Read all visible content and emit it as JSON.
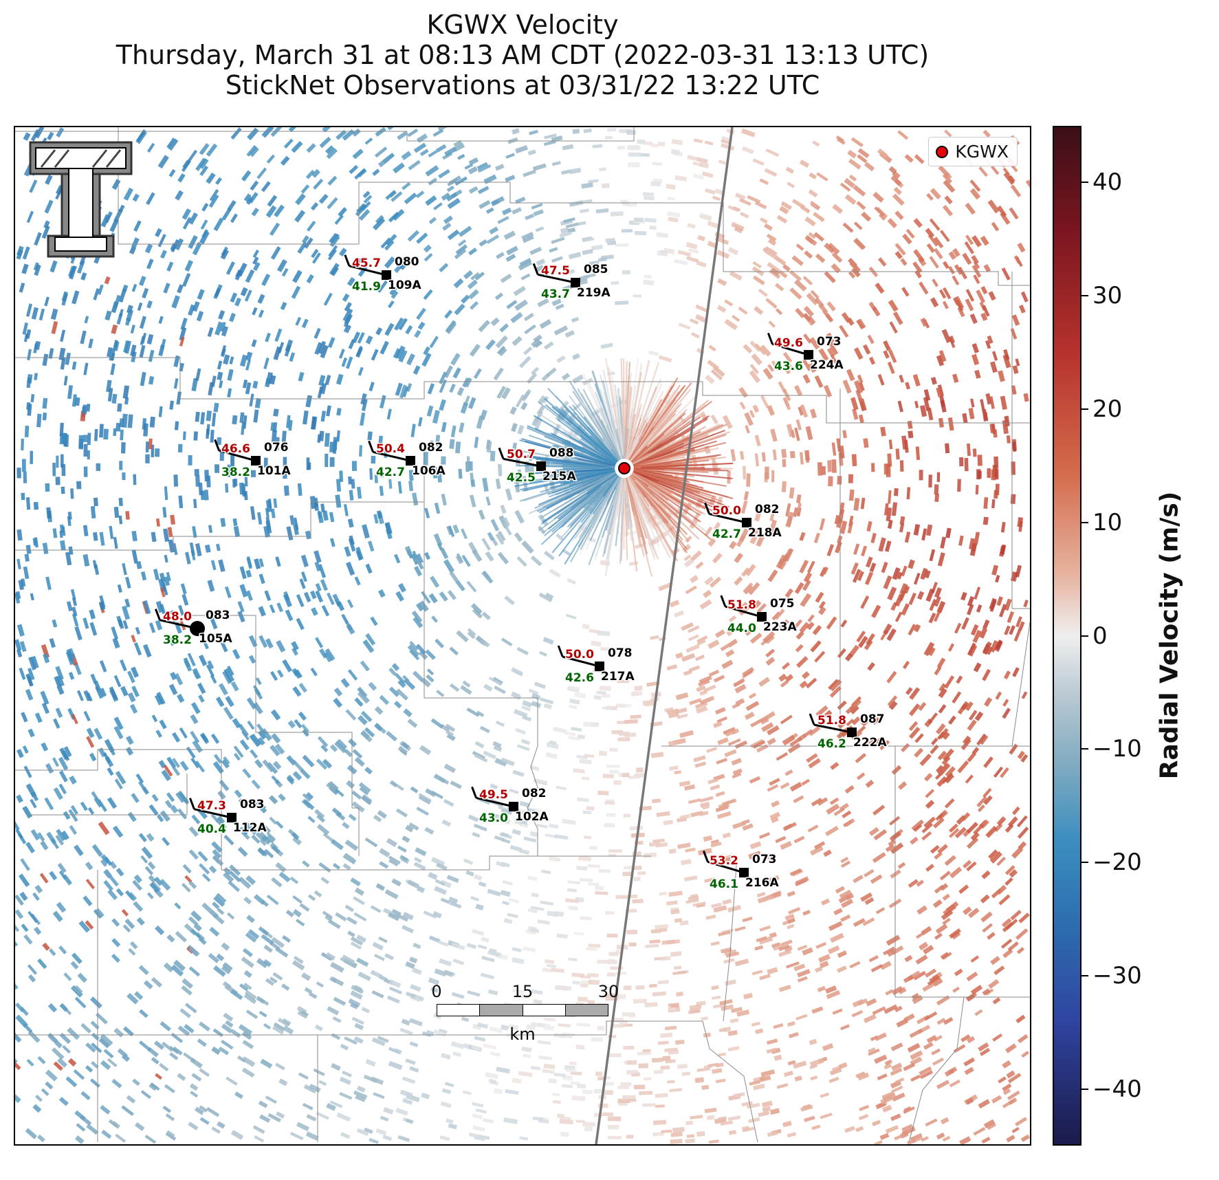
{
  "title": {
    "line1": "KGWX Velocity",
    "line2": "Thursday, March 31 at 08:13 AM CDT (2022-03-31 13:13 UTC)",
    "line3": "StickNet Observations at 03/31/22 13:22 UTC"
  },
  "legend": {
    "label": "KGWX",
    "marker_color": "#e8000b"
  },
  "colorbar": {
    "label": "Radial Velocity (m/s)",
    "ticks": [
      "40",
      "30",
      "20",
      "10",
      "0",
      "−10",
      "−20",
      "−30",
      "−40"
    ],
    "tick_values": [
      40,
      30,
      20,
      10,
      0,
      -10,
      -20,
      -30,
      -40
    ],
    "range": [
      -45,
      45
    ]
  },
  "scalebar": {
    "labels": [
      "0",
      "15",
      "30"
    ],
    "unit": "km"
  },
  "colors": {
    "temp": "#b30000",
    "dewpoint": "#006400",
    "inbound": "#2c7bb6",
    "outbound": "#c8553d"
  },
  "stations": [
    {
      "id": "109A",
      "temp": "45.7",
      "dew": "41.9",
      "dir": "080"
    },
    {
      "id": "219A",
      "temp": "47.5",
      "dew": "43.7",
      "dir": "085"
    },
    {
      "id": "224A",
      "temp": "49.6",
      "dew": "43.6",
      "dir": "073"
    },
    {
      "id": "101A",
      "temp": "46.6",
      "dew": "38.2",
      "dir": "076"
    },
    {
      "id": "106A",
      "temp": "50.4",
      "dew": "42.7",
      "dir": "082"
    },
    {
      "id": "215A",
      "temp": "50.7",
      "dew": "42.5",
      "dir": "088"
    },
    {
      "id": "218A",
      "temp": "50.0",
      "dew": "42.7",
      "dir": "082"
    },
    {
      "id": "223A",
      "temp": "51.8",
      "dew": "44.0",
      "dir": "075"
    },
    {
      "id": "105A",
      "temp": "48.0",
      "dew": "38.2",
      "dir": "083"
    },
    {
      "id": "217A",
      "temp": "50.0",
      "dew": "42.6",
      "dir": "078"
    },
    {
      "id": "222A",
      "temp": "51.8",
      "dew": "46.2",
      "dir": "087"
    },
    {
      "id": "112A",
      "temp": "47.3",
      "dew": "40.4",
      "dir": "083"
    },
    {
      "id": "102A",
      "temp": "49.5",
      "dew": "43.0",
      "dir": "082"
    },
    {
      "id": "216A",
      "temp": "53.2",
      "dew": "46.1",
      "dir": "073"
    }
  ]
}
